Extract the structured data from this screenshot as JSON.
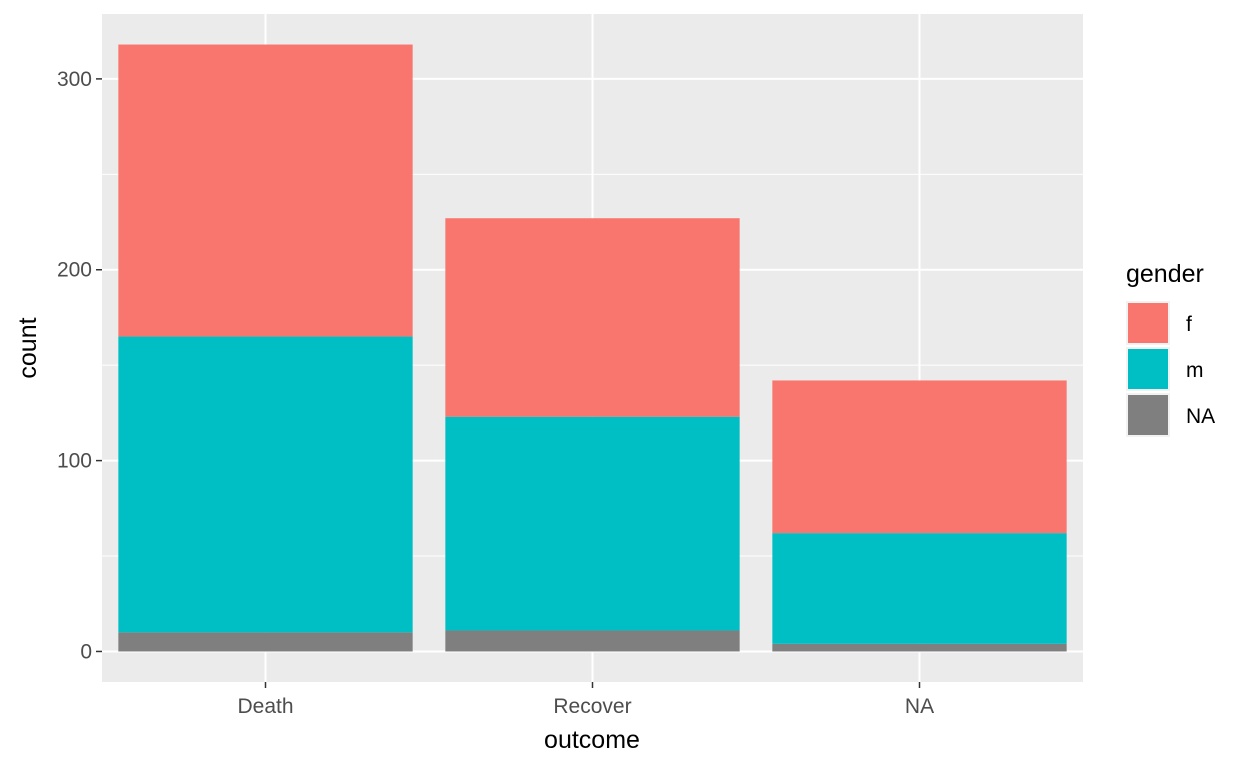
{
  "chart_data": {
    "type": "bar",
    "stacked": true,
    "categories": [
      "Death",
      "Recover",
      "NA"
    ],
    "series": [
      {
        "name": "NA",
        "values": [
          10,
          11,
          4
        ],
        "color": "#7f7f7f"
      },
      {
        "name": "m",
        "values": [
          155,
          112,
          58
        ],
        "color": "#00bfc4"
      },
      {
        "name": "f",
        "values": [
          153,
          104,
          80
        ],
        "color": "#f8766d"
      }
    ],
    "totals": [
      318,
      227,
      142
    ],
    "xlabel": "outcome",
    "ylabel": "count",
    "yticks": [
      "0",
      "100",
      "200",
      "300"
    ],
    "ylim": [
      -16,
      334
    ],
    "grid": true,
    "panel_background": "#ebebeb",
    "legend": {
      "title": "gender",
      "position": "right",
      "items": [
        "f",
        "m",
        "NA"
      ]
    }
  }
}
